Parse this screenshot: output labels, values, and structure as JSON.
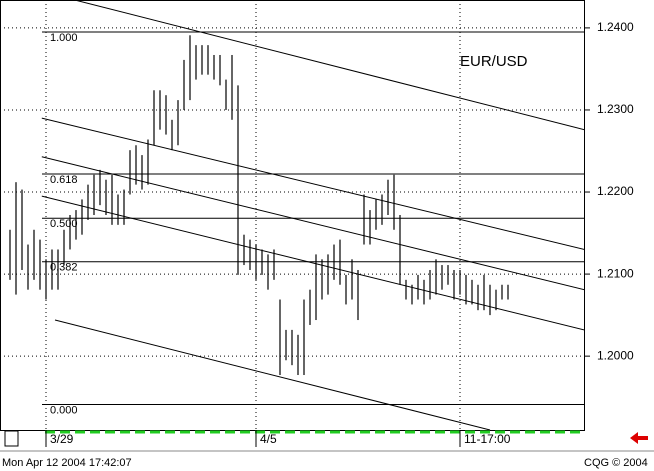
{
  "chart_data": {
    "type": "range_bar",
    "title": "EUR/USD",
    "color": "#000000",
    "x": [
      0,
      1,
      2,
      3,
      4,
      5,
      6,
      7,
      8,
      9,
      10,
      11,
      12,
      13,
      14,
      15,
      16,
      17,
      18,
      19,
      20,
      21,
      22,
      23,
      24,
      25,
      26,
      27,
      28,
      29,
      30,
      31,
      32,
      33,
      34,
      35,
      36,
      37,
      38,
      39,
      40,
      41,
      42,
      43,
      44,
      45,
      46,
      47,
      48,
      49,
      50,
      51,
      52,
      53,
      54,
      55,
      56,
      57,
      58,
      59,
      60,
      61,
      62,
      63,
      64,
      65,
      66,
      67,
      68,
      69,
      70,
      71,
      72,
      73,
      74,
      75,
      76,
      77,
      78,
      79,
      80,
      81,
      82,
      83
    ],
    "high": [
      1.2154,
      1.2212,
      1.2203,
      1.2136,
      1.2154,
      1.2142,
      1.2118,
      1.213,
      1.213,
      1.2154,
      1.2172,
      1.2178,
      1.2191,
      1.2209,
      1.2221,
      1.2227,
      1.2215,
      1.2221,
      1.2197,
      1.2203,
      1.2251,
      1.2257,
      1.2245,
      1.2264,
      1.2324,
      1.2324,
      1.2318,
      1.2288,
      1.2312,
      1.2361,
      1.2391,
      1.2379,
      1.2379,
      1.2379,
      1.2367,
      1.2367,
      1.2337,
      1.2367,
      1.233,
      1.2148,
      1.2142,
      1.2136,
      1.213,
      1.2124,
      1.213,
      1.2069,
      1.2032,
      1.2032,
      1.2026,
      1.2069,
      1.2081,
      1.2124,
      1.2118,
      1.2124,
      1.2136,
      1.2142,
      1.2099,
      1.2118,
      1.2105,
      1.2197,
      1.2178,
      1.2191,
      1.2197,
      1.2215,
      1.2221,
      1.2172,
      1.2093,
      1.2087,
      1.2099,
      1.2093,
      1.2105,
      1.2118,
      1.2111,
      1.2111,
      1.2105,
      1.2105,
      1.2099,
      1.2093,
      1.2087,
      1.2099,
      1.2087,
      1.2081,
      1.2087,
      1.2087
    ],
    "low": [
      1.2093,
      1.2075,
      1.2105,
      1.2081,
      1.2093,
      1.2081,
      1.2069,
      1.2081,
      1.2081,
      1.2111,
      1.213,
      1.2142,
      1.2148,
      1.2166,
      1.2172,
      1.2184,
      1.2172,
      1.216,
      1.216,
      1.216,
      1.2197,
      1.2209,
      1.2203,
      1.2209,
      1.2257,
      1.2276,
      1.227,
      1.2251,
      1.2257,
      1.23,
      1.2312,
      1.2337,
      1.2343,
      1.2343,
      1.2337,
      1.233,
      1.23,
      1.2288,
      1.2099,
      1.2111,
      1.2105,
      1.2093,
      1.2099,
      1.2081,
      1.2093,
      1.1977,
      1.1995,
      1.1989,
      1.1977,
      1.1977,
      1.2038,
      1.2044,
      1.2069,
      1.2075,
      1.2093,
      1.2087,
      1.2063,
      1.2069,
      1.2044,
      1.2136,
      1.2136,
      1.2154,
      1.216,
      1.2172,
      1.2154,
      1.2087,
      1.2069,
      1.2063,
      1.2069,
      1.2063,
      1.2069,
      1.2075,
      1.2081,
      1.2087,
      1.2069,
      1.2075,
      1.2063,
      1.2063,
      1.2056,
      1.2056,
      1.205,
      1.2056,
      1.2069,
      1.2069
    ],
    "xlim": [
      -1.667,
      95.667
    ],
    "ylim": [
      1.191,
      1.2434
    ],
    "xticks": [
      {
        "value": 6,
        "label": "3/29"
      },
      {
        "value": 41,
        "label": "4/5"
      },
      {
        "value": 75,
        "label": "11-17:00"
      }
    ],
    "yticks": [
      {
        "value": 1.24,
        "label": "1.2400"
      },
      {
        "value": 1.23,
        "label": "1.2300"
      },
      {
        "value": 1.22,
        "label": "1.2200"
      },
      {
        "value": 1.21,
        "label": "1.2100"
      },
      {
        "value": 1.2,
        "label": "1.2000"
      }
    ],
    "grid": true,
    "fib_levels": [
      {
        "label": "1.000",
        "value": 1.2395
      },
      {
        "label": "0.618",
        "value": 1.2222
      },
      {
        "label": "0.500",
        "value": 1.2168
      },
      {
        "label": "0.382",
        "value": 1.2115
      },
      {
        "label": "0.000",
        "value": 1.1941
      }
    ],
    "trendlines": [
      {
        "x": [
          10.8,
          95.7
        ],
        "y": [
          1.2434,
          1.2276
        ]
      },
      {
        "x": [
          5.3,
          95.7
        ],
        "y": [
          1.229,
          1.213
        ]
      },
      {
        "x": [
          5.3,
          95.7
        ],
        "y": [
          1.2243,
          1.2081
        ]
      },
      {
        "x": [
          5.3,
          95.7
        ],
        "y": [
          1.2195,
          1.2032
        ]
      },
      {
        "x": [
          7.5,
          80
        ],
        "y": [
          1.2044,
          1.191
        ]
      }
    ]
  },
  "status": {
    "timestamp": "Mon Apr 12 2004 17:42:07",
    "copyright": "CQG © 2004"
  }
}
